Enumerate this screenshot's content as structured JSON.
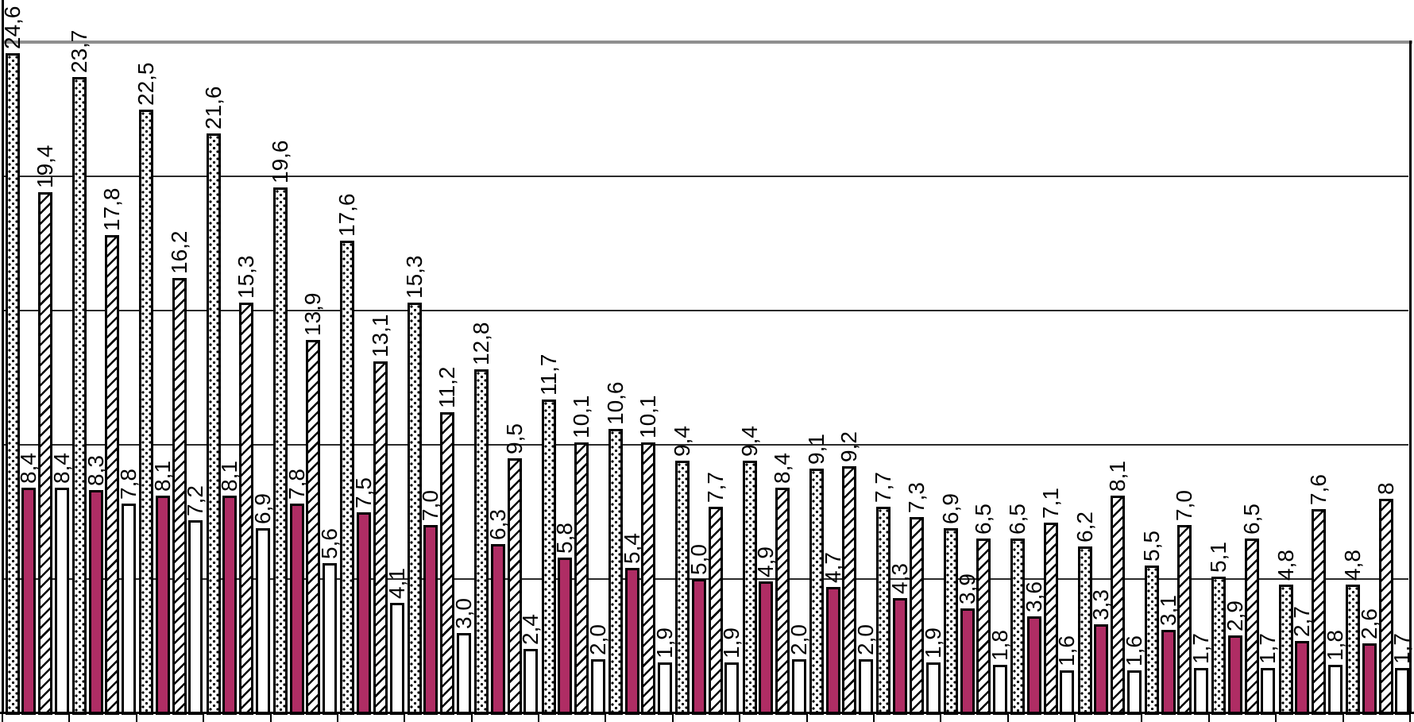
{
  "chart_data": {
    "type": "bar",
    "orientation": "vertical-grouped",
    "n_groups": 21,
    "bars_per_group": 4,
    "decimal_separator": ",",
    "value_labels_rotation_degrees": 90,
    "categories_visible": false,
    "legend_visible": false,
    "ylim": [
      0,
      25
    ],
    "y_gridlines": [
      5,
      10,
      15,
      20
    ],
    "y_top_border_value": 25,
    "colors": {
      "solid_fill": "#AF2D64",
      "pattern_ink": "#000000",
      "bar_border": "#000000",
      "grid": "#2b2b2b",
      "top_border": "#8f8f8f",
      "axis": "#000000",
      "background": "#ffffff"
    },
    "series": [
      {
        "name": "dotted",
        "pattern": "dotted-white",
        "values": [
          24.6,
          23.7,
          22.5,
          21.6,
          19.6,
          17.6,
          15.3,
          12.8,
          11.7,
          10.6,
          9.4,
          9.4,
          9.1,
          7.7,
          6.9,
          6.5,
          6.2,
          5.5,
          5.1,
          4.8,
          4.8
        ],
        "labels": [
          "24,6",
          "23,7",
          "22,5",
          "21,6",
          "19,6",
          "17,6",
          "15,3",
          "12,8",
          "11,7",
          "10,6",
          "9,4",
          "9,4",
          "9,1",
          "7,7",
          "6,9",
          "6,5",
          "6,2",
          "5,5",
          "5,1",
          "4,8",
          "4,8"
        ]
      },
      {
        "name": "solid-magenta",
        "pattern": "solid",
        "values": [
          8.4,
          8.3,
          8.1,
          8.1,
          7.8,
          7.5,
          7.0,
          6.3,
          5.8,
          5.4,
          5.0,
          4.9,
          4.7,
          4.3,
          3.9,
          3.6,
          3.3,
          3.1,
          2.9,
          2.7,
          2.6
        ],
        "labels": [
          "8,4",
          "8,3",
          "8,1",
          "8,1",
          "7,8",
          "7,5",
          "7,0",
          "6,3",
          "5,8",
          "5,4",
          "5,0",
          "4,9",
          "4,7",
          "4,3",
          "3,9",
          "3,6",
          "3,3",
          "3,1",
          "2,9",
          "2,7",
          "2,6"
        ]
      },
      {
        "name": "diagonal-hatched",
        "pattern": "diagonal-hatch",
        "values": [
          19.4,
          17.8,
          16.2,
          15.3,
          13.9,
          13.1,
          11.2,
          9.5,
          10.1,
          10.1,
          7.7,
          8.4,
          9.2,
          7.3,
          6.5,
          7.1,
          8.1,
          7.0,
          6.5,
          7.6,
          8
        ],
        "labels": [
          "19,4",
          "17,8",
          "16,2",
          "15,3",
          "13,9",
          "13,1",
          "11,2",
          "9,5",
          "10,1",
          "10,1",
          "7,7",
          "8,4",
          "9,2",
          "7,3",
          "6,5",
          "7,1",
          "8,1",
          "7,0",
          "6,5",
          "7,6",
          "8"
        ]
      },
      {
        "name": "plain-white",
        "pattern": "plain-white",
        "values": [
          8.4,
          7.8,
          7.2,
          6.9,
          5.6,
          4.1,
          3.0,
          2.4,
          2.0,
          1.9,
          1.9,
          2.0,
          2.0,
          1.9,
          1.8,
          1.6,
          1.6,
          1.7,
          1.7,
          1.8,
          1.7
        ],
        "labels": [
          "8,4",
          "7,8",
          "7,2",
          "6,9",
          "5,6",
          "4,1",
          "3,0",
          "2,4",
          "2,0",
          "1,9",
          "1,9",
          "2,0",
          "2,0",
          "1,9",
          "1,8",
          "1,6",
          "1,6",
          "1,7",
          "1,7",
          "1,8",
          "1,7"
        ]
      }
    ]
  }
}
